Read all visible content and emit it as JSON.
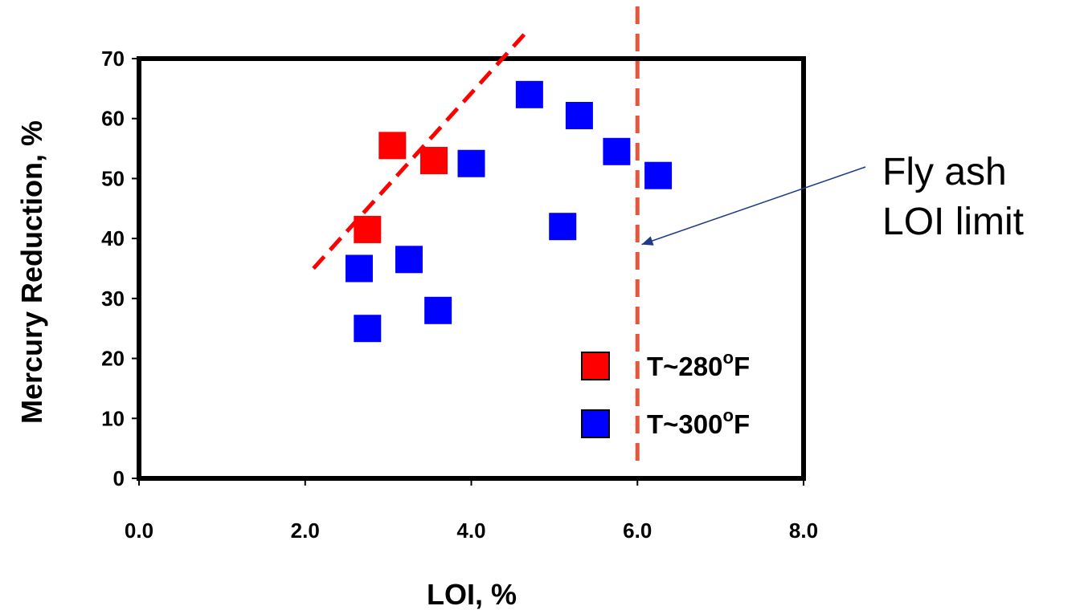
{
  "chart_data": {
    "type": "scatter",
    "title": "",
    "xlabel": "LOI, %",
    "ylabel": "Mercury Reduction, %",
    "xlim": [
      0,
      8
    ],
    "ylim": [
      0,
      70
    ],
    "x_ticks": [
      "0.0",
      "2.0",
      "4.0",
      "6.0",
      "8.0"
    ],
    "y_ticks": [
      "0",
      "10",
      "20",
      "30",
      "40",
      "50",
      "60",
      "70"
    ],
    "grid": false,
    "legend_position": "bottom-right",
    "series": [
      {
        "name_prefix": "T~280",
        "name_sup": "o",
        "name_suffix": "F",
        "color": "#ff0000",
        "points": [
          [
            2.75,
            41.5
          ],
          [
            3.05,
            55.5
          ],
          [
            3.55,
            53
          ]
        ]
      },
      {
        "name_prefix": "T~300",
        "name_sup": "o",
        "name_suffix": "F",
        "color": "#0000ff",
        "points": [
          [
            2.65,
            35
          ],
          [
            2.75,
            25
          ],
          [
            3.25,
            36.5
          ],
          [
            3.6,
            28
          ],
          [
            4.0,
            52.5
          ],
          [
            4.7,
            64
          ],
          [
            5.1,
            42
          ],
          [
            5.3,
            60.5
          ],
          [
            5.75,
            54.5
          ],
          [
            6.25,
            50.5
          ]
        ]
      }
    ],
    "trend_line": {
      "color": "#ff0000",
      "dashed": true,
      "from": [
        2.1,
        35
      ],
      "to": [
        4.7,
        75
      ]
    },
    "limit_line": {
      "x": 6.0,
      "color": "#e8553a",
      "dashed": true
    },
    "annotation": {
      "lines": [
        "Fly ash",
        "LOI limit"
      ],
      "arrow_target": [
        6.05,
        39
      ]
    }
  }
}
